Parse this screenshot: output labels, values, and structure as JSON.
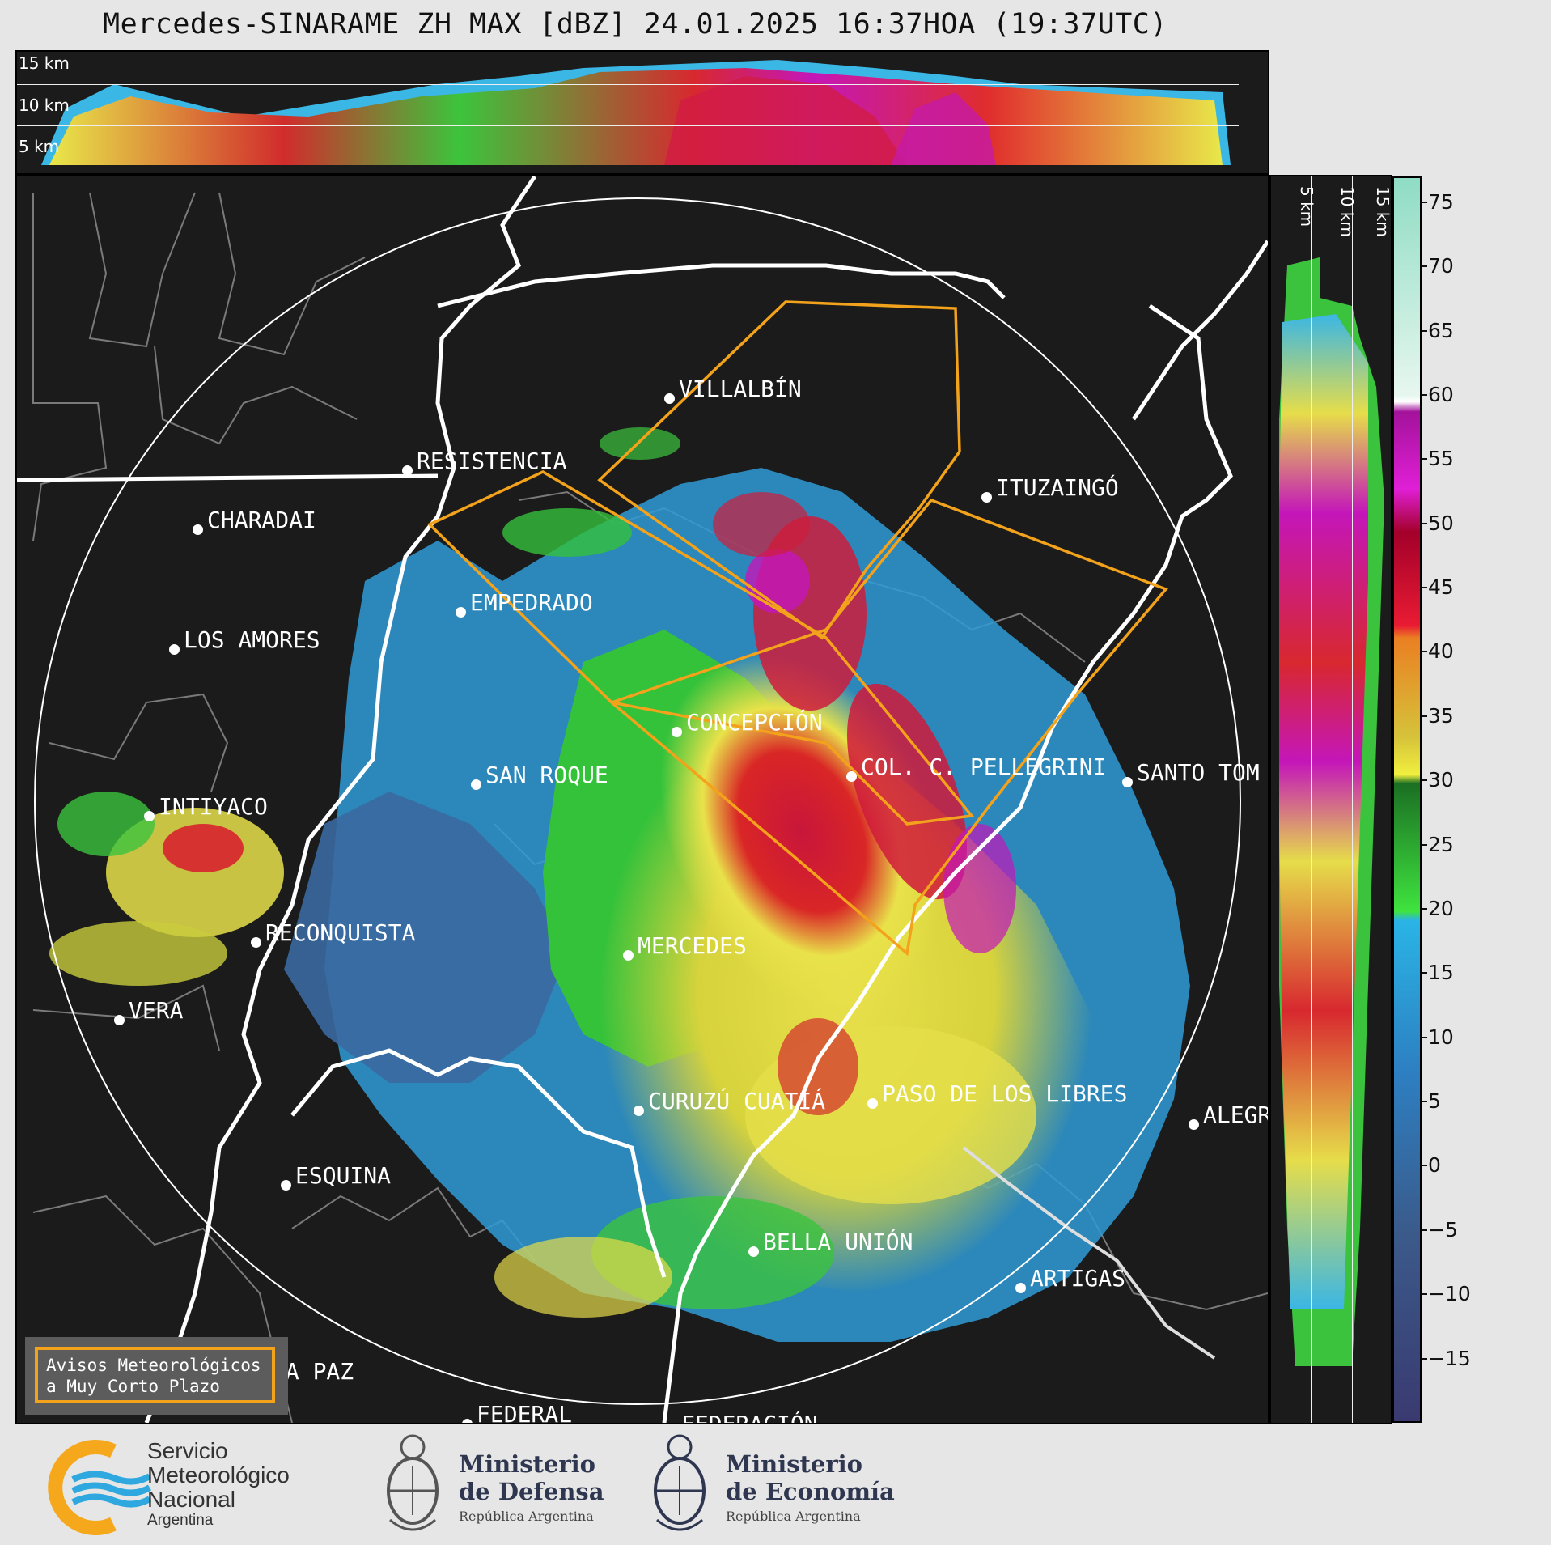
{
  "title": "Mercedes-SINARAME ZH MAX [dBZ] 24.01.2025 16:37HOA (19:37UTC)",
  "top_section": {
    "altitudes": [
      "15 km",
      "10 km",
      "5 km"
    ]
  },
  "right_section": {
    "altitudes": [
      "5 km",
      "10 km",
      "15 km"
    ]
  },
  "colorbar": {
    "unit": "dBZ",
    "ticks": [
      "75",
      "70",
      "65",
      "60",
      "55",
      "50",
      "45",
      "40",
      "35",
      "30",
      "25",
      "20",
      "15",
      "10",
      "5",
      "0",
      "−5",
      "−10",
      "−15"
    ],
    "range": [
      -20,
      77
    ]
  },
  "cities": [
    {
      "name": "VILLALBÍN"
    },
    {
      "name": "RESISTENCIA"
    },
    {
      "name": "ITUZAINGÓ"
    },
    {
      "name": "CHARADAI"
    },
    {
      "name": "EMPEDRADO"
    },
    {
      "name": "LOS AMORES"
    },
    {
      "name": "CONCEPCIÓN"
    },
    {
      "name": "SAN ROQUE"
    },
    {
      "name": "COL. C. PELLEGRINI"
    },
    {
      "name": "SANTO TOM"
    },
    {
      "name": "INTIYACO"
    },
    {
      "name": "RECONQUISTA"
    },
    {
      "name": "MERCEDES"
    },
    {
      "name": "VERA"
    },
    {
      "name": "CURUZÚ CUATIÁ"
    },
    {
      "name": "PASO DE LOS LIBRES"
    },
    {
      "name": "ALEGR"
    },
    {
      "name": "ESQUINA"
    },
    {
      "name": "BELLA UNIÓN"
    },
    {
      "name": "ARTIGAS"
    },
    {
      "name": "LA PAZ"
    },
    {
      "name": "FEDERAL"
    },
    {
      "name": "FEDERACIÓN"
    }
  ],
  "notice": {
    "line1": "Avisos Meteorológicos",
    "line2": "a Muy Corto Plazo"
  },
  "footer": {
    "smn": {
      "line1": "Servicio",
      "line2": "Meteorológico",
      "line3": "Nacional",
      "line4": "Argentina"
    },
    "defensa": {
      "line1": "Ministerio",
      "line2": "de Defensa",
      "sub": "República Argentina"
    },
    "economia": {
      "line1": "Ministerio",
      "line2": "de Economía",
      "sub": "República Argentina"
    }
  },
  "colors": {
    "warning": "#f3a21b",
    "background": "#1b1b1b",
    "logo_blue": "#2fa8e0",
    "logo_orange": "#f6a81c"
  }
}
